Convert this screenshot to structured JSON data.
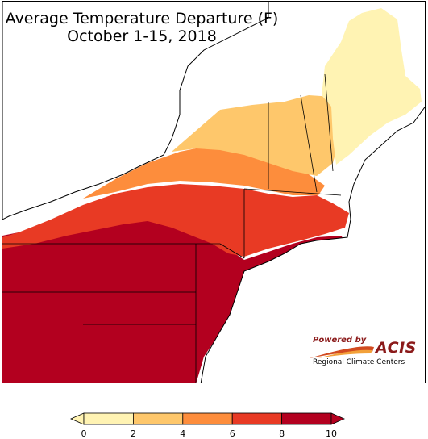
{
  "title": {
    "line1": "Average Temperature Departure (F)",
    "line2": "October 1-15, 2018"
  },
  "logo": {
    "powered_by": "Powered by",
    "name": "ACIS",
    "subtitle": "Regional Climate Centers"
  },
  "legend": {
    "ticks": [
      "0",
      "2",
      "4",
      "6",
      "8",
      "10"
    ],
    "colors": [
      "#fff3b3",
      "#fec76b",
      "#fd8d3c",
      "#e83a24",
      "#b3001f"
    ]
  },
  "colors": {
    "water": "#ffffff",
    "outline": "#000000"
  }
}
